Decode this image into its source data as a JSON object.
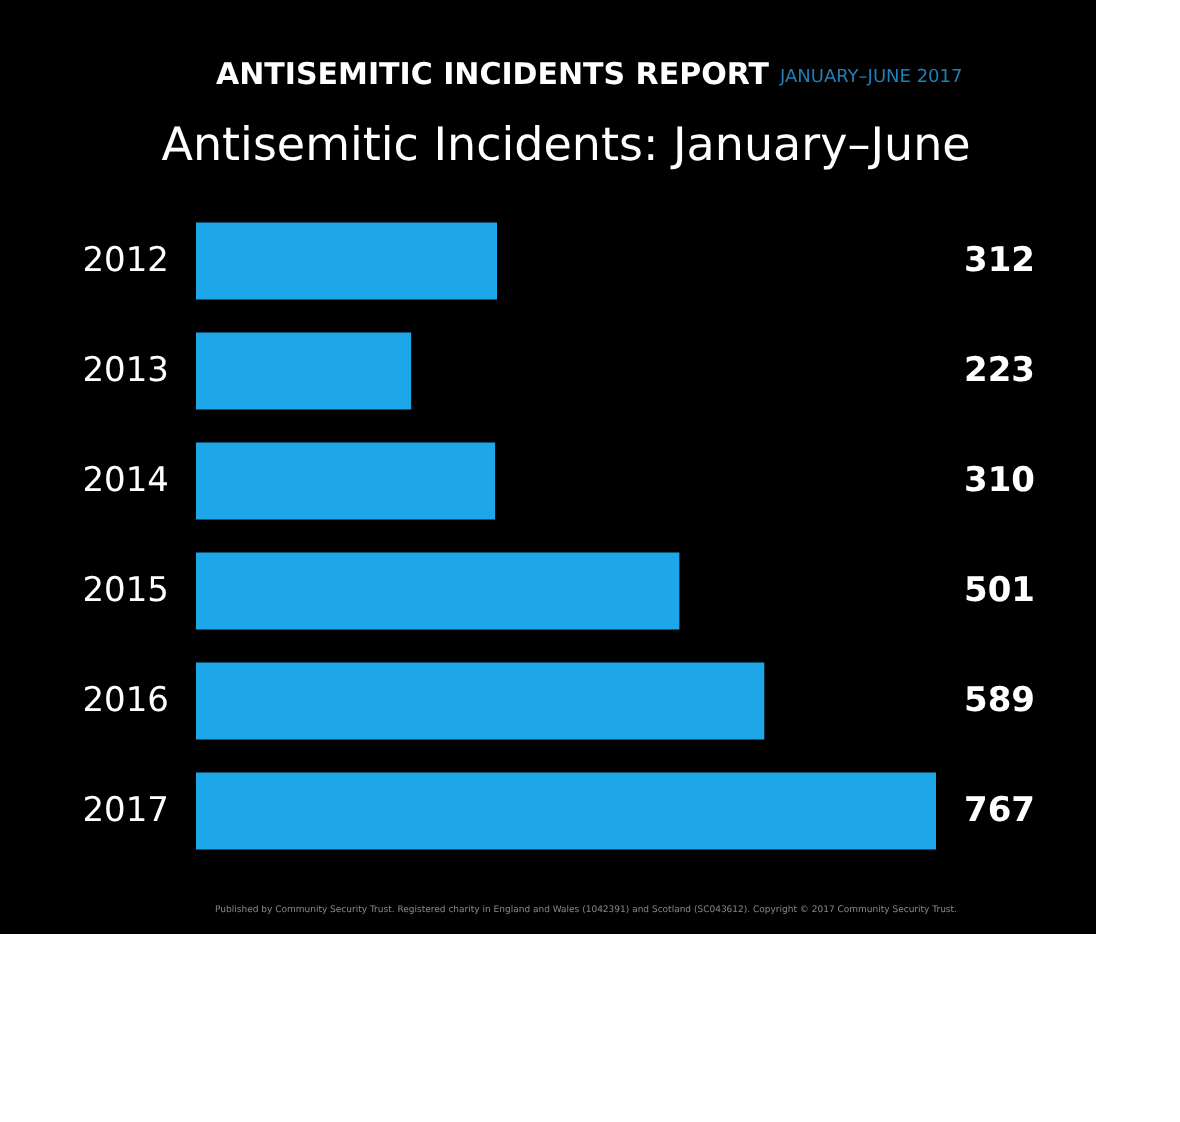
{
  "chart_data": {
    "type": "bar",
    "orientation": "horizontal",
    "title": "Antisemitic Incidents: January–June",
    "categories": [
      "2012",
      "2013",
      "2014",
      "2015",
      "2016",
      "2017"
    ],
    "values": [
      312,
      223,
      310,
      501,
      589,
      767
    ],
    "color": "#1ea7e8",
    "data_labels": true,
    "xlim": [
      0,
      767
    ],
    "tick_labels": "y",
    "annotations": [
      "ANTISEMITIC INCIDENTS REPORT",
      "JANUARY–JUNE 2017",
      "Published by Community Security Trust. Registered charity in England and Wales (1042391) and Scotland (SC043612). Copyright © 2017 Community Security Trust."
    ]
  }
}
